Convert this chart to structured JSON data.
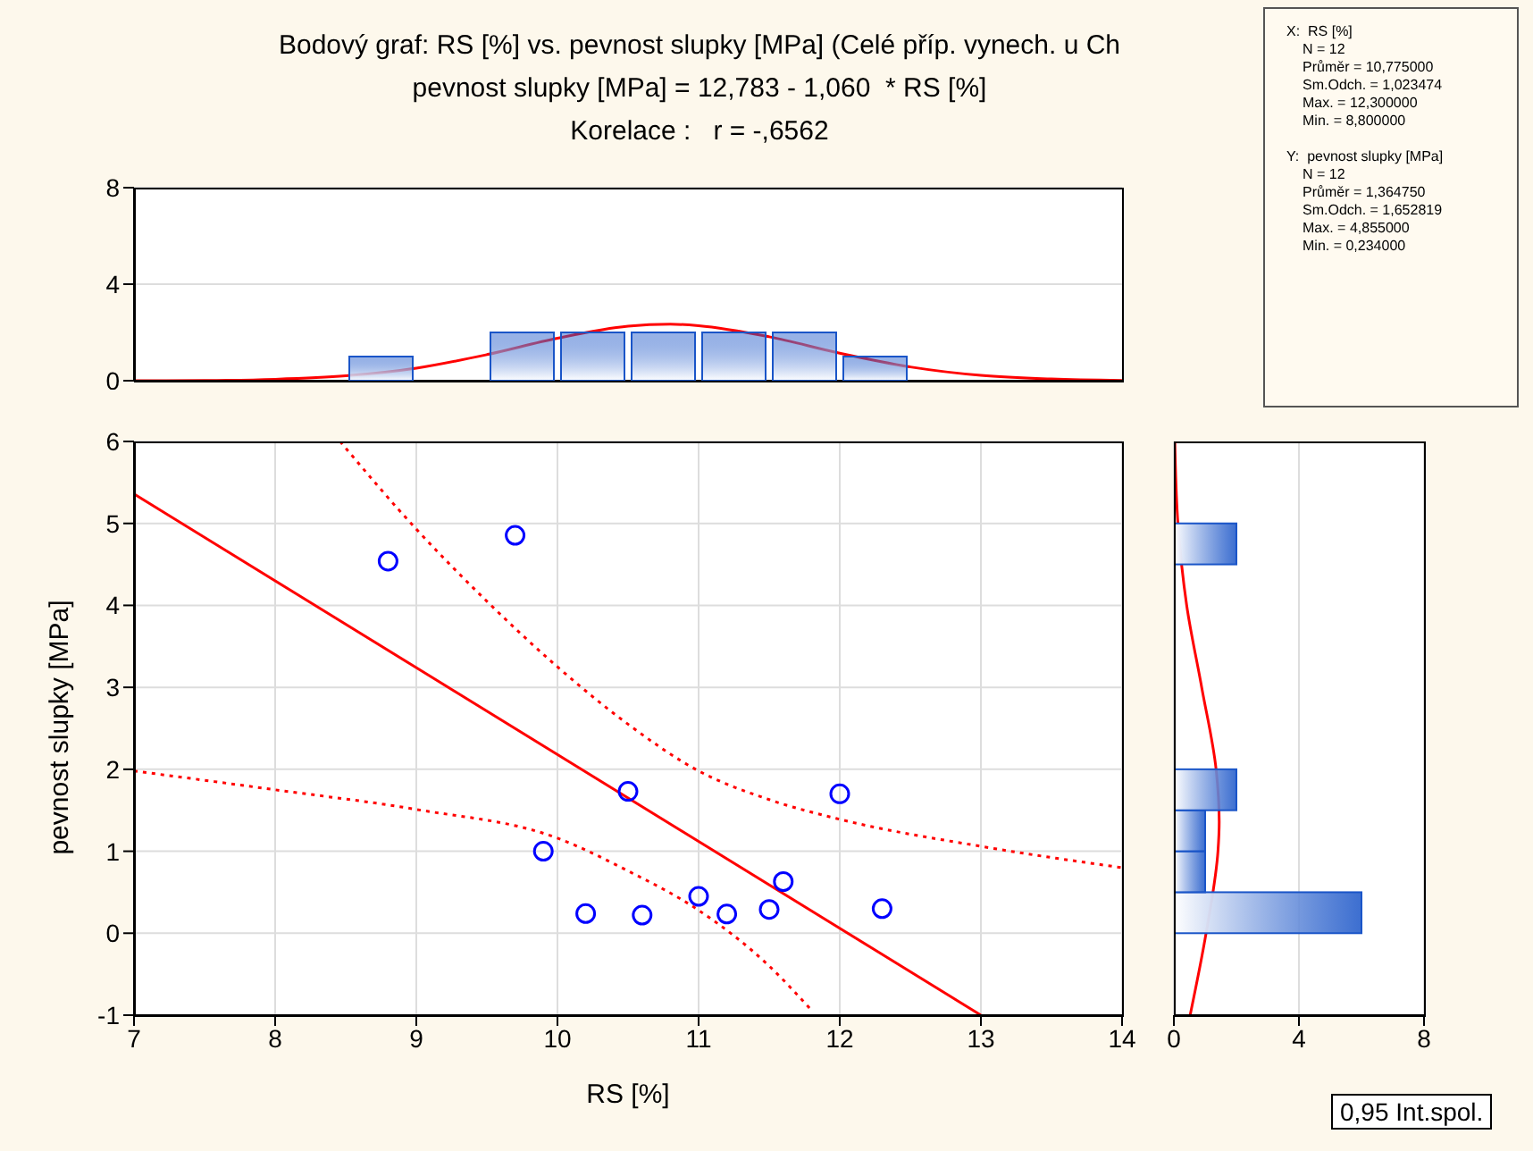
{
  "chart_data": [
    {
      "type": "scatter",
      "annotations": [
        "0,95 Int.spol."
      ],
      "xlabel": "RS [%]",
      "ylabel": "pevnost slupky [MPa]",
      "xlim": [
        7,
        14
      ],
      "xticks": [
        7,
        8,
        9,
        10,
        11,
        12,
        13,
        14
      ],
      "ylim": [
        -1,
        6
      ],
      "yticks": [
        -1,
        0,
        1,
        2,
        3,
        4,
        5,
        6
      ],
      "grid": true,
      "series": [
        {
          "type": "scatter",
          "marker": "circle",
          "color": "#0000ff",
          "x": [
            8.8,
            9.7,
            10.5,
            12.0,
            9.9,
            10.2,
            10.6,
            11.0,
            11.2,
            11.5,
            11.6,
            12.3
          ],
          "values": [
            4.54,
            4.855,
            1.73,
            1.7,
            1.0,
            0.24,
            0.22,
            0.45,
            0.234,
            0.29,
            0.63,
            0.3
          ]
        },
        {
          "type": "line",
          "marker": "none",
          "color": "#ff0000",
          "line_style": "solid",
          "x": [
            7,
            13
          ],
          "values": [
            5.36,
            -1.0
          ]
        },
        {
          "type": "line",
          "marker": "none",
          "color": "#ff0000",
          "line_style": "dotted",
          "x": [
            8.46,
            9.0,
            9.5,
            10.0,
            10.5,
            11.0,
            11.5,
            12.0,
            13.0,
            14.0
          ],
          "values": [
            6.0,
            4.93,
            4.05,
            3.25,
            2.55,
            1.98,
            1.63,
            1.39,
            1.06,
            0.8
          ]
        },
        {
          "type": "line",
          "marker": "none",
          "color": "#ff0000",
          "line_style": "dotted",
          "x": [
            7.0,
            8.0,
            9.0,
            10.0,
            10.5,
            11.0,
            11.5,
            11.8
          ],
          "values": [
            1.98,
            1.75,
            1.51,
            1.16,
            0.76,
            0.28,
            -0.4,
            -0.94
          ]
        }
      ]
    },
    {
      "type": "histogram",
      "title": "Bodový graf: RS [%] vs. pevnost slupky [MPa] (Celé příp. vynech. u Ch",
      "subtitle": "pevnost slupky [MPa] = 12,783 - 1,060  * RS [%]",
      "annotations": [
        "Korelace :   r = -,6562"
      ],
      "bins": [
        8.5,
        9.0,
        9.5,
        10.0,
        10.5,
        11.0,
        11.5,
        12.0,
        12.5
      ],
      "xlim": [
        7,
        14
      ],
      "xticks": [
        7,
        8,
        9,
        10,
        11,
        12,
        13,
        14
      ],
      "ylim": [
        0,
        8
      ],
      "yticks": [
        0,
        4,
        8
      ],
      "tick_labels": "y",
      "grid": "y",
      "series": [
        {
          "type": "histogram",
          "color": "#1a55c8",
          "values": [
            1,
            0,
            2,
            2,
            2,
            2,
            2,
            1
          ]
        },
        {
          "type": "line",
          "color": "#ff0000",
          "x": [
            7,
            7.5,
            8,
            8.5,
            9,
            9.5,
            10,
            10.5,
            10.8,
            11,
            11.5,
            12,
            12.5,
            13,
            13.5,
            14
          ],
          "values": [
            0,
            0.01,
            0.06,
            0.2,
            0.52,
            1.08,
            1.76,
            2.26,
            2.34,
            2.28,
            1.82,
            1.14,
            0.57,
            0.22,
            0.07,
            0.01
          ]
        }
      ]
    },
    {
      "type": "histogram",
      "orientation": "horizontal",
      "bins": [
        0,
        0.5,
        1.0,
        1.5,
        2.0,
        2.5,
        3.0,
        3.5,
        4.0,
        4.5,
        5.0
      ],
      "xlim": [
        0,
        8
      ],
      "xticks": [
        0,
        4,
        8
      ],
      "ylim": [
        -1,
        6
      ],
      "yticks": [
        -1,
        0,
        1,
        2,
        3,
        4,
        5,
        6
      ],
      "tick_labels": "x",
      "grid": "x",
      "series": [
        {
          "type": "histogram",
          "color": "#1a55c8",
          "values": [
            6,
            1,
            1,
            2,
            0,
            0,
            0,
            0,
            0,
            2
          ]
        },
        {
          "type": "line",
          "color": "#ff0000",
          "x": [
            -1,
            0,
            1,
            1.36,
            2,
            3,
            4,
            5,
            6
          ],
          "values": [
            0.52,
            1.03,
            1.41,
            1.45,
            1.35,
            0.89,
            0.41,
            0.13,
            0.03
          ]
        }
      ]
    },
    {
      "type": "other",
      "annotations": [
        "X:  RS [%]\nN = 12\nPrůměr = 10,775000\nSm.Odch. = 1,023474\nMax. = 12,300000\nMin. = 8,800000",
        "Y:  pevnost slupky [MPa]\nN = 12\nPrůměr = 1,364750\nSm.Odch. = 1,652819\nMax. = 4,855000\nMin. = 0,234000"
      ]
    }
  ]
}
